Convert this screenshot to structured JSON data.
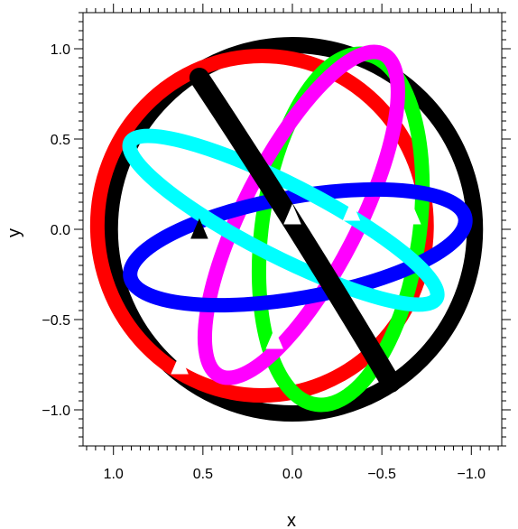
{
  "chart_data": {
    "type": "line",
    "title": "",
    "xlabel": "x",
    "ylabel": "y",
    "x_axis_reversed": true,
    "xlim": [
      1.17,
      -1.17
    ],
    "ylim": [
      -1.2,
      1.2
    ],
    "xticks": [
      1.0,
      0.5,
      0.0,
      -0.5,
      -1.0
    ],
    "xtick_labels": [
      "1.0",
      "0.5",
      "0.0",
      "−0.5",
      "−1.0"
    ],
    "yticks": [
      1.0,
      0.5,
      0.0,
      -0.5,
      -1.0
    ],
    "ytick_labels": [
      "1.0",
      "0.5",
      "0.0",
      "−0.5",
      "−1.0"
    ],
    "grid": false,
    "legend": "none",
    "series": [
      {
        "color": "#000000",
        "kind": "outline",
        "center": [
          0.0,
          0.0
        ],
        "rx": 1.02,
        "ry": 1.02,
        "rotation": 0
      },
      {
        "color": "#ff0000",
        "kind": "great-circle",
        "center": [
          0.17,
          0.02
        ],
        "rx": 0.92,
        "ry": 0.94,
        "rotation": 0
      },
      {
        "color": "#00ff00",
        "kind": "great-circle",
        "center": [
          -0.27,
          0.0
        ],
        "rx": 0.44,
        "ry": 0.98,
        "rotation": 8
      },
      {
        "color": "#ff00ff",
        "kind": "great-circle",
        "center": [
          -0.05,
          0.08
        ],
        "rx": 0.32,
        "ry": 1.0,
        "rotation": 27
      },
      {
        "color": "#0000ff",
        "kind": "great-circle",
        "center": [
          -0.03,
          -0.1
        ],
        "rx": 0.95,
        "ry": 0.28,
        "rotation": -10
      },
      {
        "color": "#00ffff",
        "kind": "great-circle",
        "center": [
          0.05,
          0.05
        ],
        "rx": 0.96,
        "ry": 0.2,
        "rotation": 27
      },
      {
        "color": "#000000",
        "kind": "arc",
        "from": [
          0.52,
          0.84
        ],
        "to": [
          -0.55,
          -0.85
        ]
      }
    ],
    "arrows": [
      {
        "x": 0.52,
        "y": 0.0,
        "color": "#000000"
      },
      {
        "x": 0.0,
        "y": 0.08,
        "color": "#ffffff"
      },
      {
        "x": -0.33,
        "y": 0.1,
        "color": "#ffffff"
      },
      {
        "x": -0.67,
        "y": 0.08,
        "color": "#ffffff"
      },
      {
        "x": 0.1,
        "y": -0.61,
        "color": "#ffffff"
      },
      {
        "x": 0.63,
        "y": -0.75,
        "color": "#ffffff"
      }
    ]
  }
}
